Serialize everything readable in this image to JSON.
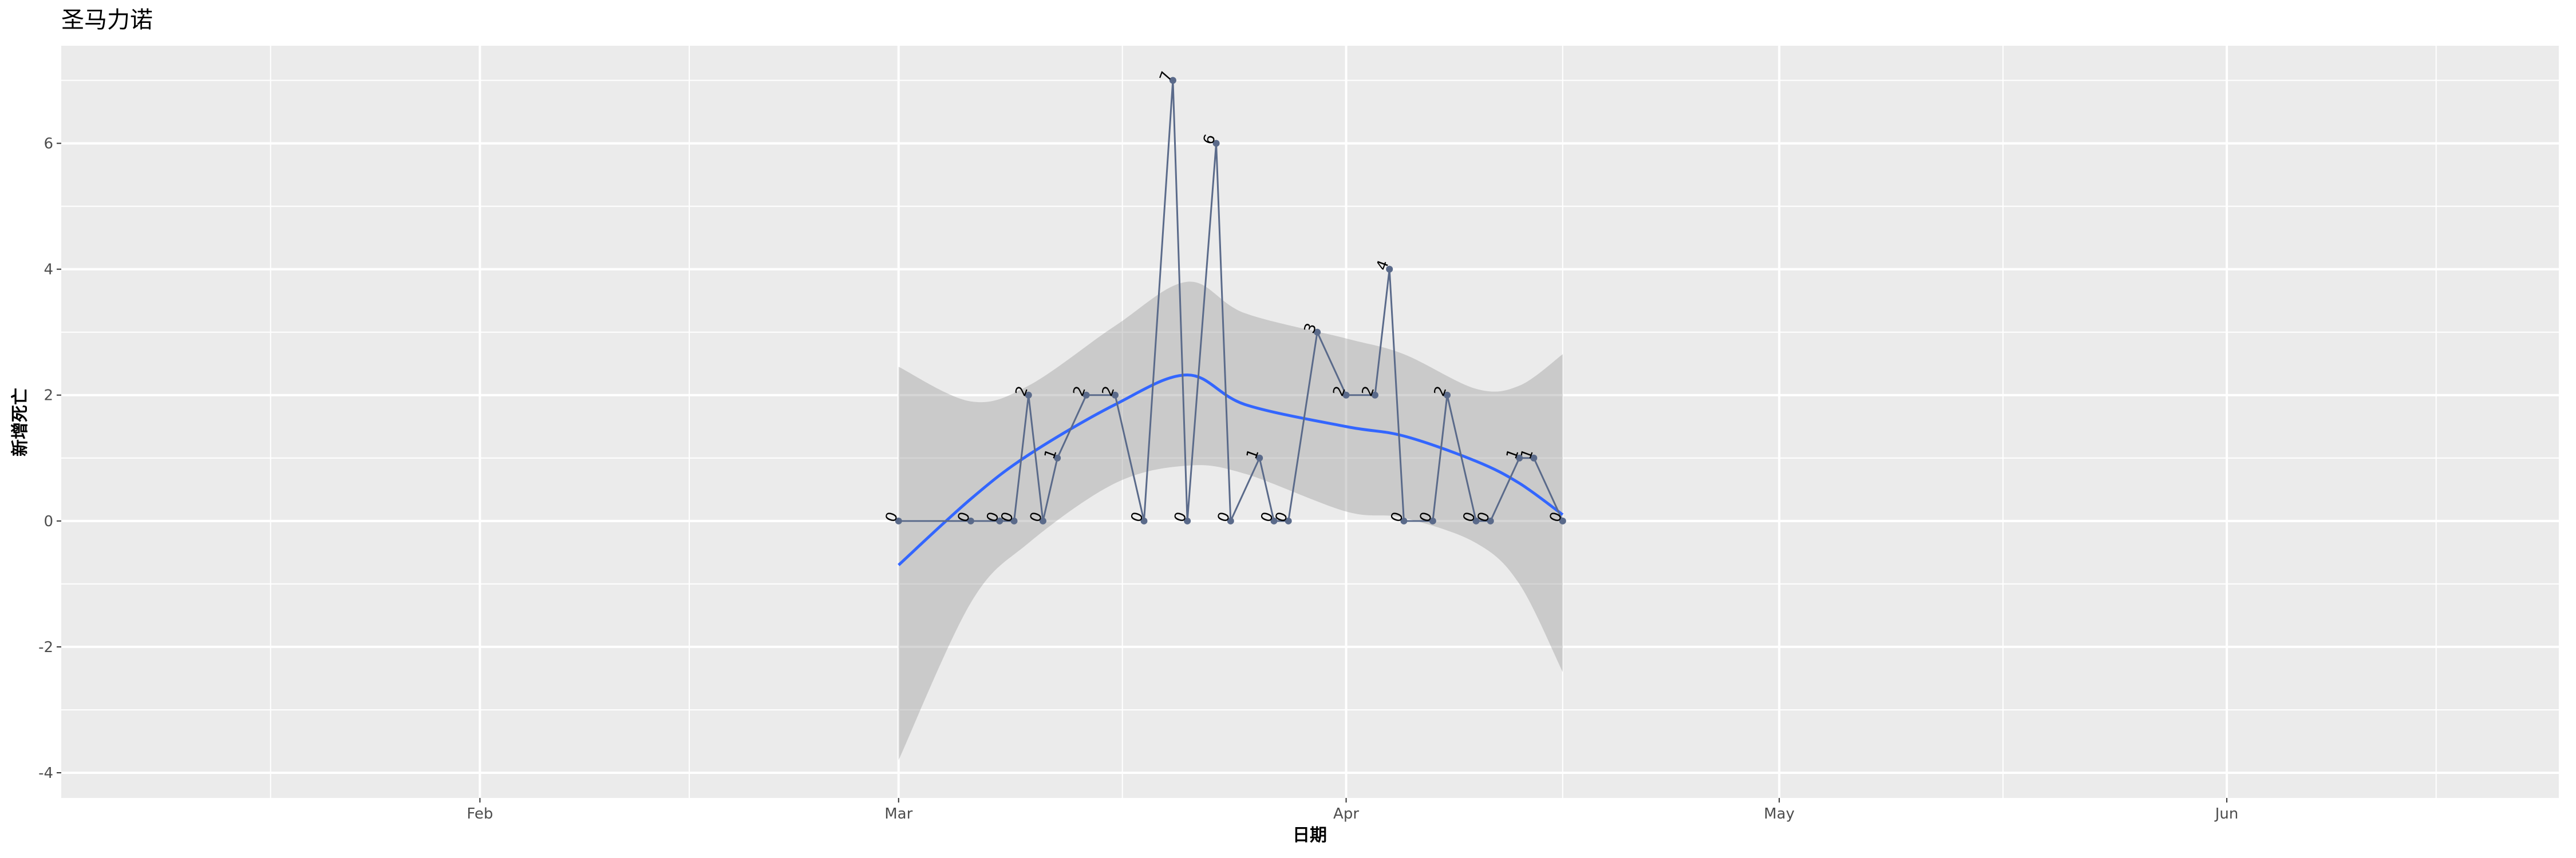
{
  "chart_data": {
    "type": "line",
    "title": "圣马力诺",
    "xlabel": "日期",
    "ylabel": "新增死亡",
    "xlim": [
      "2020-01-03",
      "2020-06-24"
    ],
    "ylim": [
      -4.4,
      7.55
    ],
    "x_ticks": [
      {
        "date": "2020-02-01",
        "label": "Feb"
      },
      {
        "date": "2020-03-01",
        "label": "Mar"
      },
      {
        "date": "2020-04-01",
        "label": "Apr"
      },
      {
        "date": "2020-05-01",
        "label": "May"
      },
      {
        "date": "2020-06-01",
        "label": "Jun"
      }
    ],
    "y_ticks": [
      -4,
      -2,
      0,
      2,
      4,
      6
    ],
    "grid": true,
    "colors": {
      "panel": "#ebebeb",
      "grid": "#ffffff",
      "series": "#5a6a8a",
      "smooth": "#3366ff",
      "ribbon": "#bdbdbd"
    },
    "series": [
      {
        "x": [
          "2020-03-01",
          "2020-03-06",
          "2020-03-08",
          "2020-03-09",
          "2020-03-10",
          "2020-03-11",
          "2020-03-12",
          "2020-03-14",
          "2020-03-16",
          "2020-03-18",
          "2020-03-20",
          "2020-03-21",
          "2020-03-23",
          "2020-03-24",
          "2020-03-26",
          "2020-03-27",
          "2020-03-28",
          "2020-03-30",
          "2020-04-01",
          "2020-04-03",
          "2020-04-04",
          "2020-04-05",
          "2020-04-07",
          "2020-04-08",
          "2020-04-10",
          "2020-04-11",
          "2020-04-13",
          "2020-04-14",
          "2020-04-16"
        ],
        "values": [
          0,
          0,
          0,
          0,
          2,
          0,
          1,
          2,
          2,
          0,
          7,
          0,
          6,
          0,
          1,
          0,
          0,
          3,
          2,
          2,
          4,
          0,
          0,
          2,
          0,
          0,
          1,
          1,
          0
        ]
      }
    ],
    "smooth": {
      "x": [
        "2020-03-01",
        "2020-03-06",
        "2020-03-10",
        "2020-03-16",
        "2020-03-21",
        "2020-03-25",
        "2020-04-01",
        "2020-04-05",
        "2020-04-10",
        "2020-04-13",
        "2020-04-16"
      ],
      "fit": [
        -0.7,
        0.35,
        1.05,
        1.85,
        2.32,
        1.85,
        1.5,
        1.35,
        0.95,
        0.6,
        0.1
      ],
      "upper": [
        2.45,
        1.9,
        2.15,
        3.1,
        3.8,
        3.3,
        2.9,
        2.65,
        2.1,
        2.15,
        2.65
      ],
      "lower": [
        -3.8,
        -1.3,
        -0.35,
        0.6,
        0.88,
        0.75,
        0.15,
        0.05,
        -0.35,
        -1.0,
        -2.4
      ]
    }
  }
}
